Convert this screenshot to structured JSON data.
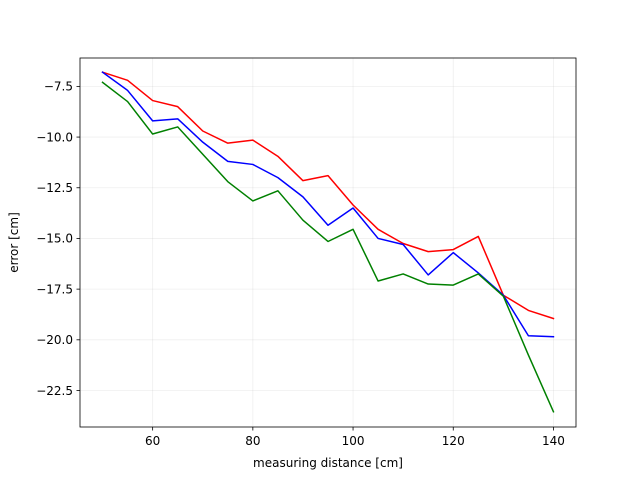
{
  "chart_data": {
    "type": "line",
    "title": "",
    "xlabel": "measuring distance [cm]",
    "ylabel": "error [cm]",
    "xlim": [
      45.5,
      144.5
    ],
    "ylim": [
      -24.3,
      -6.1
    ],
    "x_ticks": [
      60,
      80,
      100,
      120,
      140
    ],
    "y_ticks": [
      -7.5,
      -10.0,
      -12.5,
      -15.0,
      -17.5,
      -20.0,
      -22.5
    ],
    "grid": true,
    "legend": "none",
    "x": [
      50,
      55,
      60,
      65,
      70,
      75,
      80,
      85,
      90,
      95,
      100,
      105,
      110,
      115,
      120,
      125,
      130,
      135,
      140
    ],
    "series": [
      {
        "color": "#ff0000",
        "values": [
          -6.8,
          -7.2,
          -8.2,
          -8.5,
          -9.7,
          -10.3,
          -10.15,
          -10.95,
          -12.15,
          -11.9,
          -13.35,
          -14.55,
          -15.25,
          -15.65,
          -15.55,
          -14.9,
          -17.8,
          -18.55,
          -18.95
        ]
      },
      {
        "color": "#0000ff",
        "values": [
          -6.8,
          -7.7,
          -9.2,
          -9.1,
          -10.25,
          -11.2,
          -11.35,
          -12.0,
          -12.95,
          -14.35,
          -13.5,
          -15.0,
          -15.3,
          -16.8,
          -15.7,
          -16.7,
          -17.8,
          -19.8,
          -19.85
        ]
      },
      {
        "color": "#008000",
        "values": [
          -7.3,
          -8.25,
          -9.85,
          -9.5,
          -10.85,
          -12.2,
          -13.15,
          -12.65,
          -14.1,
          -15.15,
          -14.55,
          -17.1,
          -16.75,
          -17.25,
          -17.3,
          -16.75,
          -17.85,
          -20.75,
          -23.55
        ]
      }
    ]
  }
}
